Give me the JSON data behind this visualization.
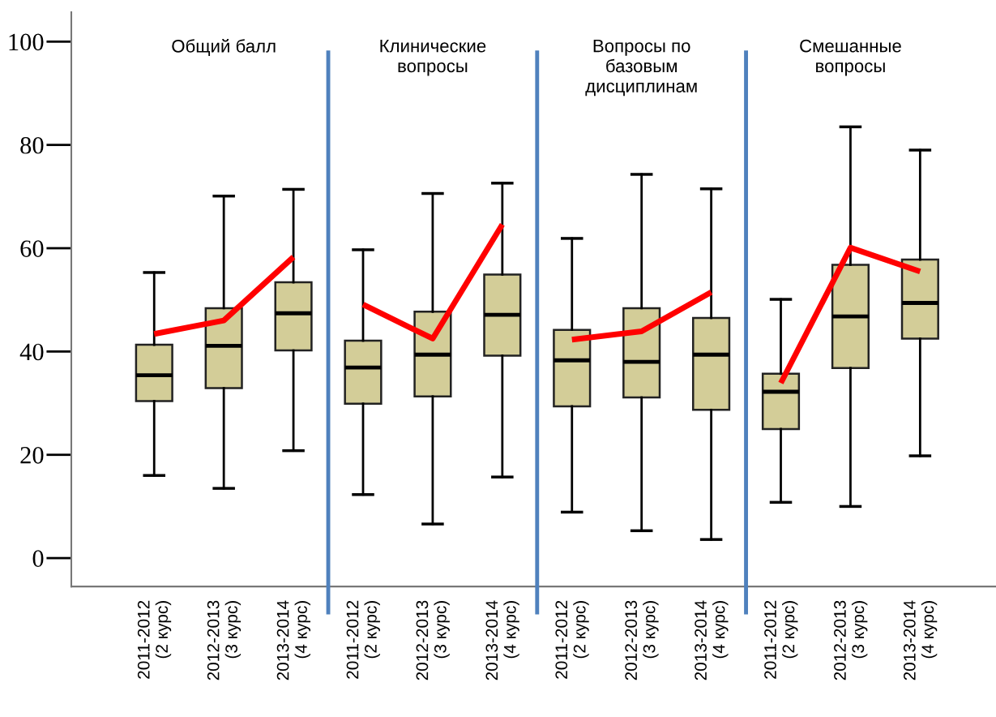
{
  "chart_data": {
    "type": "box",
    "categories": [
      "2011-2012\n(2 курс)",
      "2012-2013\n(3 курс)",
      "2013-2014\n(4 курс)",
      "2011-2012\n(2 курс)",
      "2012-2013\n(3 курс)",
      "2013-2014\n(4 курс)",
      "2011-2012\n(2 курс)",
      "2012-2013\n(3 курс)",
      "2013-2014\n(4 курс)",
      "2011-2012\n(2 курс)",
      "2012-2013\n(3 курс)",
      "2013-2014\n(4 курс)"
    ],
    "boxes": [
      {
        "low": 16.0,
        "q1": 30.4,
        "median": 35.4,
        "q3": 41.3,
        "high": 55.3
      },
      {
        "low": 13.5,
        "q1": 32.9,
        "median": 41.1,
        "q3": 48.4,
        "high": 70.1
      },
      {
        "low": 20.8,
        "q1": 40.2,
        "median": 47.4,
        "q3": 53.4,
        "high": 71.4
      },
      {
        "low": 12.3,
        "q1": 29.9,
        "median": 36.9,
        "q3": 42.1,
        "high": 59.7
      },
      {
        "low": 6.6,
        "q1": 31.3,
        "median": 39.4,
        "q3": 47.7,
        "high": 70.6
      },
      {
        "low": 15.7,
        "q1": 39.2,
        "median": 47.1,
        "q3": 54.9,
        "high": 72.6
      },
      {
        "low": 8.9,
        "q1": 29.4,
        "median": 38.3,
        "q3": 44.2,
        "high": 61.9
      },
      {
        "low": 5.3,
        "q1": 31.1,
        "median": 38.0,
        "q3": 48.4,
        "high": 74.3
      },
      {
        "low": 3.6,
        "q1": 28.7,
        "median": 39.4,
        "q3": 46.5,
        "high": 71.5
      },
      {
        "low": 10.8,
        "q1": 25.0,
        "median": 32.2,
        "q3": 35.7,
        "high": 50.1
      },
      {
        "low": 10.0,
        "q1": 36.8,
        "median": 46.8,
        "q3": 56.8,
        "high": 83.5
      },
      {
        "low": 19.8,
        "q1": 42.5,
        "median": 49.4,
        "q3": 57.8,
        "high": 79.0
      }
    ],
    "color": "#d3cd98",
    "series": [
      {
        "type": "line",
        "color": "#ff0000",
        "values": [
          43.4,
          46.0,
          58.3,
          null,
          null,
          null,
          null,
          null,
          null,
          null,
          null,
          null
        ]
      },
      {
        "type": "line",
        "color": "#ff0000",
        "values": [
          null,
          null,
          null,
          49.1,
          42.5,
          64.6,
          null,
          null,
          null,
          null,
          null,
          null
        ]
      },
      {
        "type": "line",
        "color": "#ff0000",
        "values": [
          null,
          null,
          null,
          null,
          null,
          null,
          42.3,
          43.9,
          51.5,
          null,
          null,
          null
        ]
      },
      {
        "type": "line",
        "color": "#ff0000",
        "values": [
          null,
          null,
          null,
          null,
          null,
          null,
          null,
          null,
          null,
          33.9,
          60.1,
          55.5
        ]
      }
    ],
    "ylim": [
      -5.5,
      105.7
    ],
    "yticks": [
      0,
      20,
      40,
      60,
      80,
      100
    ],
    "annotations": [
      "Общий балл",
      "Клинические\nвопросы",
      "Вопросы по\nбазовым\nдисциплинам",
      "Смешанные\nвопросы"
    ],
    "grid": false,
    "legend": false
  }
}
